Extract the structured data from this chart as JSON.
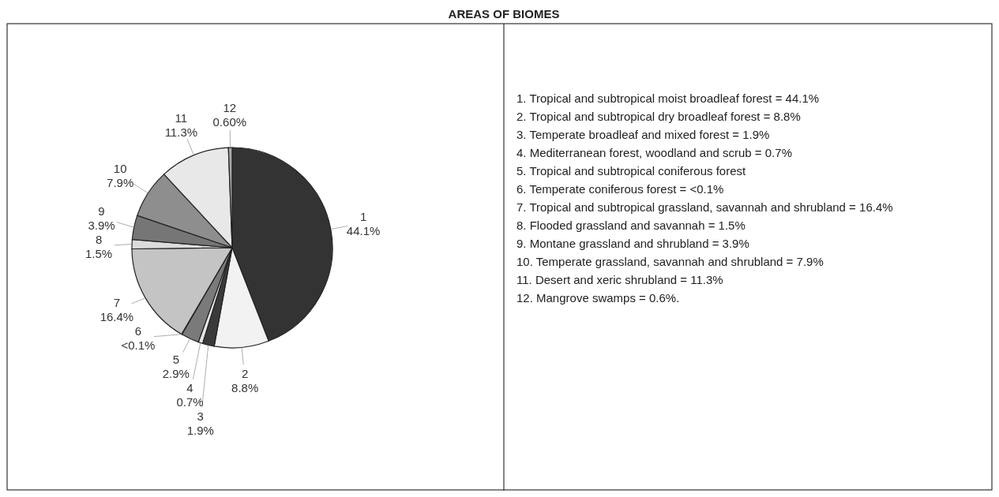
{
  "chart_data": {
    "type": "pie",
    "title": "AREAS OF BIOMES",
    "categories": [
      "1",
      "2",
      "3",
      "4",
      "5",
      "6",
      "7",
      "8",
      "9",
      "10",
      "11",
      "12"
    ],
    "values": [
      44.1,
      8.8,
      1.9,
      0.7,
      2.9,
      0.05,
      16.4,
      1.5,
      3.9,
      7.9,
      11.3,
      0.6
    ],
    "value_labels": [
      "44.1%",
      "8.8%",
      "1.9%",
      "0.7%",
      "2.9%",
      "<0.1%",
      "16.4%",
      "1.5%",
      "3.9%",
      "7.9%",
      "11.3%",
      "0.60%"
    ],
    "colors": [
      "#333333",
      "#f2f2f2",
      "#3a3a3a",
      "#e4e4e4",
      "#7a7a7a",
      "#d4d4d4",
      "#c4c4c4",
      "#dcdcdc",
      "#767676",
      "#8e8e8e",
      "#e8e8e8",
      "#a8a8a8"
    ],
    "annotations": [
      "1. Tropical and subtropical moist broadleaf forest = 44.1%",
      "2. Tropical and subtropical dry broadleaf forest = 8.8%",
      "3. Temperate broadleaf and mixed forest = 1.9%",
      "4.  Mediterranean forest, woodland and scrub = 0.7%",
      "5.  Tropical and subtropical coniferous forest",
      "6.  Temperate coniferous forest = <0.1%",
      "7.  Tropical and subtropical grassland, savannah and shrubland = 16.4%",
      "8.  Flooded grassland and savannah = 1.5%",
      "9.  Montane grassland and shrubland = 3.9%",
      "10.  Temperate grassland, savannah and shrubland = 7.9%",
      "11.  Desert and xeric shrubland = 11.3%",
      "12.  Mangrove swamps = 0.6%."
    ]
  }
}
